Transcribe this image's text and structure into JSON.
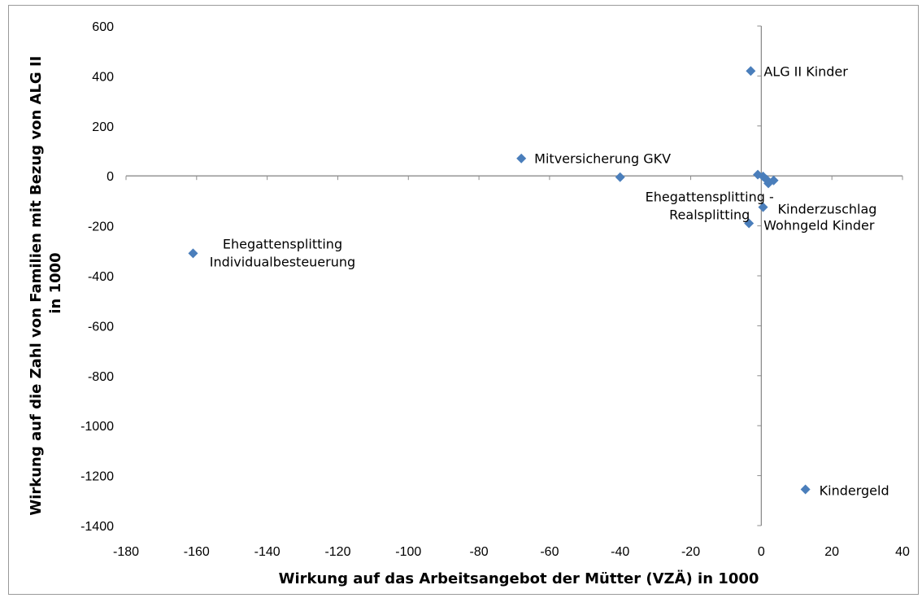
{
  "chart_data": {
    "type": "scatter",
    "xlabel": "Wirkung auf das Arbeitsangebot der Mütter (VZÄ) in 1000",
    "ylabel": [
      "Wirkung auf die Zahl von Familien mit Bezug von ALG II",
      "in 1000"
    ],
    "xlim": [
      -180,
      40
    ],
    "ylim": [
      -1400,
      600
    ],
    "xticks": [
      -180,
      -160,
      -140,
      -120,
      -100,
      -80,
      -60,
      -40,
      -20,
      0,
      20,
      40
    ],
    "yticks": [
      600,
      400,
      200,
      0,
      -200,
      -400,
      -600,
      -800,
      -1000,
      -1200,
      -1400
    ],
    "grid": false,
    "marker_color": "#4a7ebb",
    "points": [
      {
        "x": -3,
        "y": 420,
        "label": [
          "ALG II Kinder"
        ]
      },
      {
        "x": -68,
        "y": 70,
        "label": [
          "Mitversicherung GKV"
        ]
      },
      {
        "x": -40,
        "y": -5,
        "label": [
          "Ehegattensplitting -",
          "Realsplitting"
        ]
      },
      {
        "x": -161,
        "y": -310,
        "label": [
          "Ehegattensplitting",
          "Individualbesteuerung"
        ]
      },
      {
        "x": 0.5,
        "y": -125,
        "label": [
          "Kinderzuschlag"
        ]
      },
      {
        "x": -3.5,
        "y": -190,
        "label": [
          "Wohngeld Kinder"
        ]
      },
      {
        "x": 12.5,
        "y": -1255,
        "label": [
          "Kindergeld"
        ]
      },
      {
        "x": -1,
        "y": 5,
        "label": []
      },
      {
        "x": 0.5,
        "y": -2,
        "label": []
      },
      {
        "x": 1.5,
        "y": -15,
        "label": []
      },
      {
        "x": 2,
        "y": -30,
        "label": []
      },
      {
        "x": 3.5,
        "y": -18,
        "label": []
      }
    ]
  }
}
